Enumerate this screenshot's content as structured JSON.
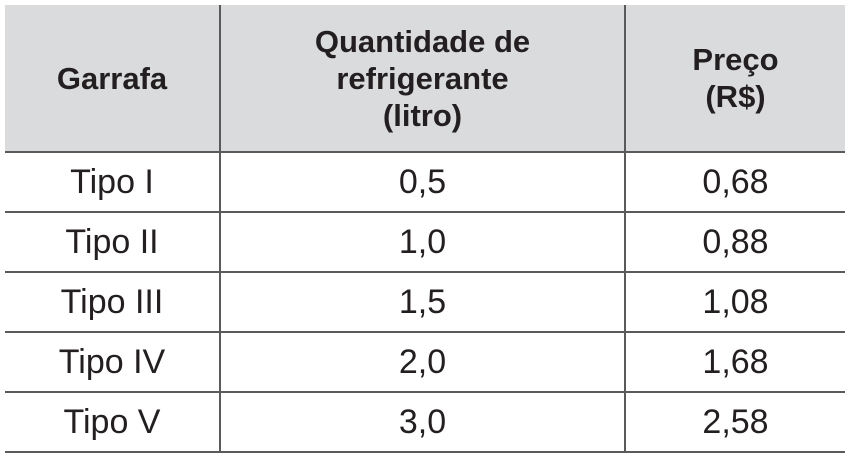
{
  "table": {
    "header": [
      [
        "Garrafa"
      ],
      [
        "Quantidade de",
        "refrigerante",
        "(litro)"
      ],
      [
        "Preço",
        "(R$)"
      ]
    ],
    "rows": [
      [
        "Tipo I",
        "0,5",
        "0,68"
      ],
      [
        "Tipo II",
        "1,0",
        "0,88"
      ],
      [
        "Tipo III",
        "1,5",
        "1,08"
      ],
      [
        "Tipo IV",
        "2,0",
        "1,68"
      ],
      [
        "Tipo V",
        "3,0",
        "2,58"
      ]
    ]
  }
}
